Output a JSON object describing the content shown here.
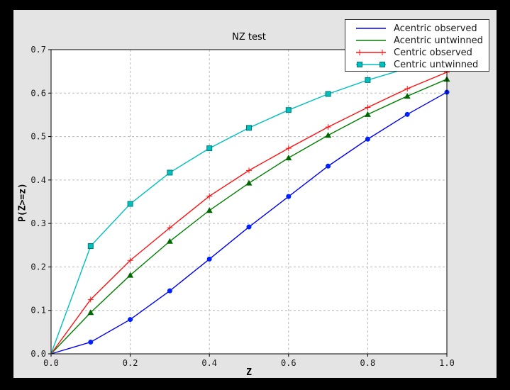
{
  "window": {
    "background_color": "#000000",
    "figure_background_color": "#e4e4e4",
    "plot_background_color": "#ffffff",
    "grid_color": "#b8b8b8",
    "spine_color": "#000000",
    "tick_label_color": "#1a1a1a"
  },
  "chart_data": {
    "type": "line",
    "title": "NZ test",
    "xlabel": "Z",
    "ylabel": "P(Z>=z)",
    "xlim": [
      0.0,
      1.0
    ],
    "ylim": [
      0.0,
      0.7
    ],
    "xticks": [
      "0.0",
      "0.2",
      "0.4",
      "0.6",
      "0.8",
      "1.0"
    ],
    "yticks": [
      "0.0",
      "0.1",
      "0.2",
      "0.3",
      "0.4",
      "0.5",
      "0.6",
      "0.7"
    ],
    "grid": true,
    "grid_style": "dashed",
    "legend_position": "upper right",
    "x": [
      0.0,
      0.1,
      0.2,
      0.3,
      0.4,
      0.5,
      0.6,
      0.7,
      0.8,
      0.9,
      1.0
    ],
    "series": [
      {
        "name": "Acentric observed",
        "color": "#0000ee",
        "marker": "circle",
        "marker_color": "#0020ff",
        "legend_marker": "none",
        "values": [
          0.0,
          0.027,
          0.079,
          0.145,
          0.218,
          0.292,
          0.362,
          0.432,
          0.494,
          0.551,
          0.602
        ]
      },
      {
        "name": "Acentric untwinned",
        "color": "#007f00",
        "marker": "triangle",
        "marker_color": "#006600",
        "legend_marker": "none",
        "values": [
          0.0,
          0.095,
          0.181,
          0.259,
          0.33,
          0.393,
          0.451,
          0.503,
          0.551,
          0.593,
          0.632
        ]
      },
      {
        "name": "Centric observed",
        "color": "#ff1010",
        "marker": "plus",
        "marker_color": "#ff1010",
        "legend_marker": "plus",
        "values": [
          0.0,
          0.125,
          0.215,
          0.29,
          0.363,
          0.422,
          0.473,
          0.522,
          0.567,
          0.61,
          0.648
        ]
      },
      {
        "name": "Centric untwinned",
        "color": "#00bfbf",
        "marker": "square",
        "marker_color": "#00bfbf",
        "marker_edge_color": "#007a7a",
        "legend_marker": "square",
        "values": [
          0.0,
          0.248,
          0.345,
          0.417,
          0.473,
          0.52,
          0.561,
          0.598,
          0.63,
          0.657,
          0.683
        ]
      }
    ]
  }
}
